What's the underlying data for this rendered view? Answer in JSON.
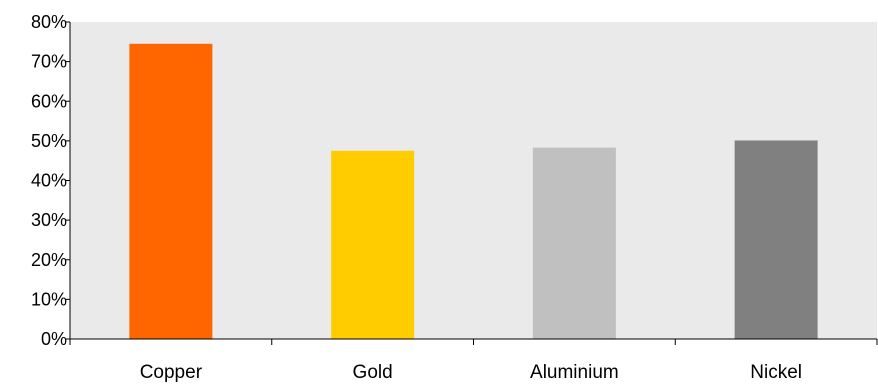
{
  "chart_data": {
    "type": "bar",
    "categories": [
      "Copper",
      "Gold",
      "Aluminium",
      "Nickel"
    ],
    "values": [
      74.5,
      47.5,
      48.3,
      50.1
    ],
    "colors": [
      "#FF6600",
      "#FFCC00",
      "#C0C0C0",
      "#808080"
    ],
    "ylim": [
      0,
      80
    ],
    "yticks": [
      0,
      10,
      20,
      30,
      40,
      50,
      60,
      70,
      80
    ],
    "ytick_labels": [
      "0%",
      "10%",
      "20%",
      "30%",
      "40%",
      "50%",
      "60%",
      "70%",
      "80%"
    ],
    "grid": false,
    "plot_background": "#EAEAEA",
    "title": "",
    "xlabel": "",
    "ylabel": ""
  }
}
